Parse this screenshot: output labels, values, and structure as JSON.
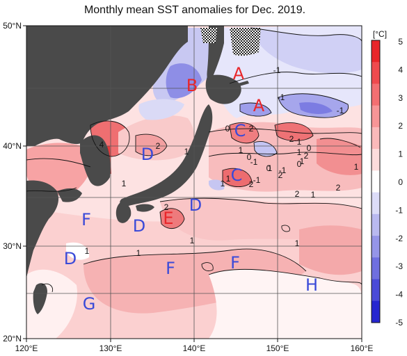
{
  "title": "Monthly mean SST anomalies for Dec. 2019.",
  "axes": {
    "x_ticks": [
      "120°E",
      "130°E",
      "140°E",
      "150°E",
      "160°E"
    ],
    "y_ticks": [
      "50°N",
      "40°N",
      "30°N",
      "20°N"
    ]
  },
  "colorbar": {
    "unit": "[°C]",
    "ticks": [
      "5",
      "4",
      "3",
      "2",
      "1",
      "0",
      "-1",
      "-2",
      "-3",
      "-4",
      "-5"
    ],
    "colors": [
      "#e8262a",
      "#ef4a4e",
      "#f36f72",
      "#f79597",
      "#fab9ba",
      "#fddcdc",
      "#ffffff",
      "#dcdcf8",
      "#b9b9f0",
      "#9595e8",
      "#6f6fe0",
      "#4a4ad8",
      "#2626d0"
    ]
  },
  "zones": [
    {
      "label": "A",
      "color": "#e8262a"
    },
    {
      "label": "A",
      "color": "#e8262a"
    },
    {
      "label": "B",
      "color": "#e8262a"
    },
    {
      "label": "C",
      "color": "#3a4ad8"
    },
    {
      "label": "C",
      "color": "#3a4ad8"
    },
    {
      "label": "D",
      "color": "#3a4ad8"
    },
    {
      "label": "D",
      "color": "#3a4ad8"
    },
    {
      "label": "D",
      "color": "#3a4ad8"
    },
    {
      "label": "D",
      "color": "#3a4ad8"
    },
    {
      "label": "E",
      "color": "#e8262a"
    },
    {
      "label": "F",
      "color": "#3a4ad8"
    },
    {
      "label": "F",
      "color": "#3a4ad8"
    },
    {
      "label": "F",
      "color": "#3a4ad8"
    },
    {
      "label": "G",
      "color": "#3a4ad8"
    },
    {
      "label": "H",
      "color": "#3a4ad8"
    }
  ],
  "contour_labels": [
    "-1",
    "-1",
    "-1",
    "-1",
    "-1",
    "0",
    "2",
    "2",
    "1",
    "0",
    "1",
    "2",
    "1",
    "0",
    "0",
    "-1",
    "2",
    "1",
    "2",
    "1",
    "1",
    "2",
    "1",
    "2",
    "1",
    "1",
    "1",
    "1",
    "2",
    "1",
    "0",
    "4",
    "2",
    "1",
    "1",
    "1"
  ]
}
